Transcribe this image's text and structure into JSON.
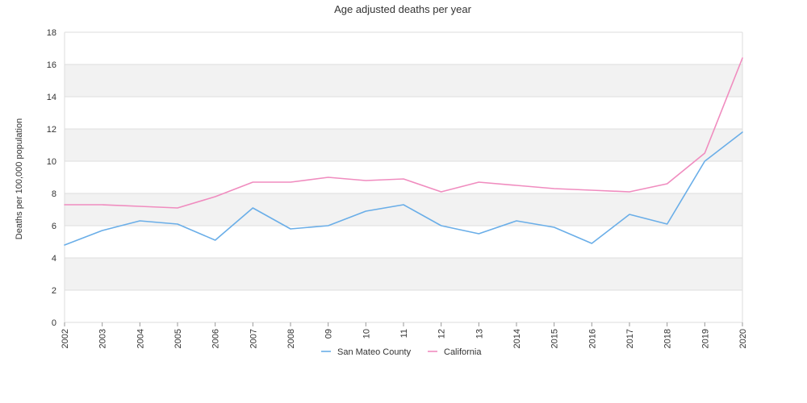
{
  "chart_data": {
    "type": "line",
    "title": "Age adjusted deaths per year",
    "xlabel": "",
    "ylabel": "Deaths per 100,000 population",
    "ylim": [
      0,
      18
    ],
    "yticks": [
      0,
      2,
      4,
      6,
      8,
      10,
      12,
      14,
      16,
      18
    ],
    "grid": true,
    "legend": "bottom",
    "categories": [
      "2002",
      "2003",
      "2004",
      "2005",
      "2006",
      "2007",
      "2008",
      "09",
      "10",
      "11",
      "12",
      "13",
      "2014",
      "2015",
      "2016",
      "2017",
      "2018",
      "2019",
      "2020"
    ],
    "series": [
      {
        "name": "San Mateo County",
        "color": "#6aaee8",
        "values": [
          4.8,
          5.7,
          6.3,
          6.1,
          5.1,
          7.1,
          5.8,
          6.0,
          6.9,
          7.3,
          6.0,
          5.5,
          6.3,
          5.9,
          4.9,
          6.7,
          6.1,
          10.0,
          11.8
        ]
      },
      {
        "name": "California",
        "color": "#f08cbf",
        "values": [
          7.3,
          7.3,
          7.2,
          7.1,
          7.8,
          8.7,
          8.7,
          9.0,
          8.8,
          8.9,
          8.1,
          8.7,
          8.5,
          8.3,
          8.2,
          8.1,
          8.6,
          10.5,
          16.4
        ]
      }
    ],
    "band_color": "#f2f2f2",
    "grid_color": "#dddddd"
  }
}
